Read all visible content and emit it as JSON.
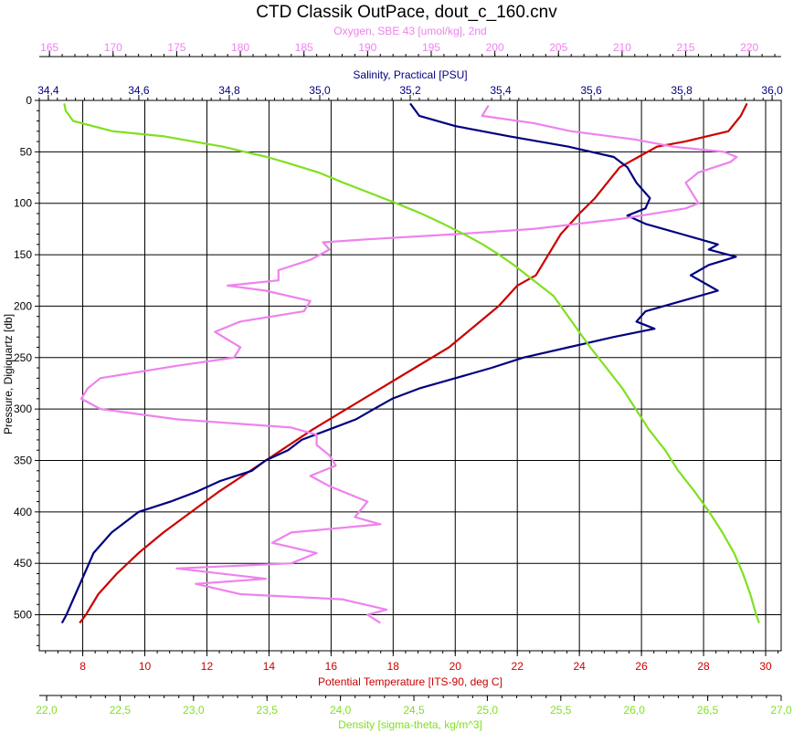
{
  "chart_data": {
    "type": "line",
    "title": "CTD Classik OutPace, dout_c_160.cnv",
    "y_axis": {
      "label": "Pressure, Digiquartz [db]",
      "range": [
        0,
        535
      ],
      "inverted": true,
      "ticks": [
        0,
        50,
        100,
        150,
        200,
        250,
        300,
        350,
        400,
        450,
        500
      ]
    },
    "x_axes": [
      {
        "id": "oxygen",
        "label": "Oxygen, SBE 43 [umol/kg], 2nd",
        "position": "top-outer",
        "color": "#ee82ee",
        "range": [
          164.2,
          222.5
        ],
        "ticks": [
          165,
          170,
          175,
          180,
          185,
          190,
          195,
          200,
          205,
          210,
          215,
          220
        ]
      },
      {
        "id": "salinity",
        "label": "Salinity, Practical [PSU]",
        "position": "top-inner",
        "color": "#000080",
        "range": [
          34.38,
          36.02
        ],
        "ticks": [
          "34,4",
          "34,6",
          "34,8",
          "35,0",
          "35,2",
          "35,4",
          "35,6",
          "35,8",
          "36,0"
        ],
        "tick_values": [
          34.4,
          34.6,
          34.8,
          35.0,
          35.2,
          35.4,
          35.6,
          35.8,
          36.0
        ]
      },
      {
        "id": "temperature",
        "label": "Potential Temperature [ITS-90, deg C]",
        "position": "bottom-inner",
        "color": "#cc0000",
        "range": [
          6.6,
          30.5
        ],
        "ticks": [
          8,
          10,
          12,
          14,
          16,
          18,
          20,
          22,
          24,
          26,
          28,
          30
        ]
      },
      {
        "id": "density",
        "label": "Density [sigma-theta, kg/m^3]",
        "position": "bottom-outer",
        "color": "#80e020",
        "range": [
          21.95,
          27.0
        ],
        "ticks": [
          "22,0",
          "22,5",
          "23,0",
          "23,5",
          "24,0",
          "24,5",
          "25,0",
          "25,5",
          "26,0",
          "26,5",
          "27,0"
        ],
        "tick_values": [
          22.0,
          22.5,
          23.0,
          23.5,
          24.0,
          24.5,
          25.0,
          25.5,
          26.0,
          26.5,
          27.0
        ]
      }
    ],
    "grid": true,
    "series": [
      {
        "axis": "temperature",
        "color": "#cc0000",
        "y": [
          3,
          15,
          30,
          40,
          45,
          55,
          65,
          80,
          95,
          110,
          130,
          150,
          170,
          180,
          200,
          220,
          240,
          260,
          280,
          300,
          320,
          340,
          360,
          380,
          400,
          420,
          440,
          460,
          480,
          500,
          508
        ],
        "x": [
          29.4,
          29.2,
          28.8,
          27.4,
          26.5,
          25.9,
          25.3,
          24.9,
          24.5,
          24.0,
          23.4,
          23.0,
          22.6,
          22.0,
          21.4,
          20.6,
          19.8,
          18.7,
          17.6,
          16.5,
          15.4,
          14.4,
          13.4,
          12.4,
          11.5,
          10.6,
          9.8,
          9.1,
          8.5,
          8.1,
          7.9
        ]
      },
      {
        "axis": "salinity",
        "color": "#000080",
        "y": [
          3,
          15,
          25,
          35,
          45,
          55,
          65,
          80,
          95,
          105,
          112,
          120,
          130,
          140,
          145,
          152,
          160,
          170,
          185,
          195,
          205,
          215,
          222,
          230,
          240,
          250,
          260,
          270,
          280,
          290,
          300,
          310,
          320,
          330,
          340,
          350,
          360,
          370,
          380,
          390,
          400,
          420,
          440,
          460,
          480,
          500,
          508
        ],
        "x": [
          35.2,
          35.22,
          35.3,
          35.42,
          35.55,
          35.65,
          35.68,
          35.7,
          35.73,
          35.72,
          35.68,
          35.72,
          35.8,
          35.88,
          35.86,
          35.92,
          35.86,
          35.82,
          35.88,
          35.8,
          35.72,
          35.7,
          35.74,
          35.65,
          35.55,
          35.45,
          35.38,
          35.3,
          35.22,
          35.16,
          35.12,
          35.08,
          35.02,
          34.96,
          34.93,
          34.88,
          34.85,
          34.78,
          34.73,
          34.67,
          34.6,
          34.54,
          34.5,
          34.48,
          34.46,
          34.44,
          34.43
        ]
      },
      {
        "axis": "oxygen",
        "color": "#ee82ee",
        "y": [
          5,
          15,
          22,
          30,
          38,
          45,
          50,
          55,
          60,
          70,
          80,
          90,
          100,
          105,
          115,
          125,
          130,
          135,
          138,
          145,
          155,
          165,
          175,
          180,
          185,
          195,
          205,
          215,
          225,
          240,
          250,
          258,
          265,
          270,
          280,
          290,
          300,
          310,
          318,
          325,
          335,
          345,
          355,
          365,
          375,
          390,
          405,
          412,
          420,
          430,
          440,
          450,
          455,
          465,
          470,
          480,
          485,
          495,
          500,
          508
        ],
        "x": [
          199.5,
          199.0,
          203.0,
          206.0,
          211.0,
          214.0,
          218.0,
          219.0,
          218.5,
          216.0,
          215.0,
          215.5,
          216.0,
          215.0,
          210.0,
          203.0,
          197.0,
          190.0,
          186.5,
          187.0,
          185.5,
          183.0,
          183.0,
          179.0,
          182.0,
          185.5,
          185.0,
          180.0,
          178.0,
          180.0,
          179.5,
          175.0,
          171.5,
          169.0,
          168.0,
          167.5,
          169.0,
          175.0,
          184.0,
          186.0,
          186.0,
          187.0,
          187.5,
          185.5,
          187.0,
          190.0,
          189.0,
          191.0,
          184.0,
          182.5,
          186.0,
          184.0,
          175.0,
          182.0,
          176.5,
          180.0,
          188.0,
          191.5,
          190.0,
          191.0
        ]
      },
      {
        "axis": "density",
        "color": "#80e020",
        "y": [
          3,
          10,
          20,
          30,
          35,
          40,
          45,
          50,
          55,
          60,
          70,
          80,
          90,
          100,
          110,
          120,
          130,
          140,
          150,
          160,
          170,
          180,
          190,
          200,
          220,
          240,
          260,
          280,
          300,
          320,
          340,
          360,
          380,
          400,
          420,
          440,
          460,
          480,
          500,
          508
        ],
        "x": [
          22.12,
          22.13,
          22.18,
          22.45,
          22.8,
          23.0,
          23.2,
          23.35,
          23.5,
          23.62,
          23.85,
          24.02,
          24.2,
          24.38,
          24.55,
          24.7,
          24.84,
          24.97,
          25.08,
          25.18,
          25.27,
          25.36,
          25.45,
          25.5,
          25.6,
          25.7,
          25.81,
          25.92,
          26.01,
          26.1,
          26.21,
          26.3,
          26.41,
          26.51,
          26.6,
          26.68,
          26.74,
          26.79,
          26.83,
          26.85
        ]
      }
    ]
  }
}
